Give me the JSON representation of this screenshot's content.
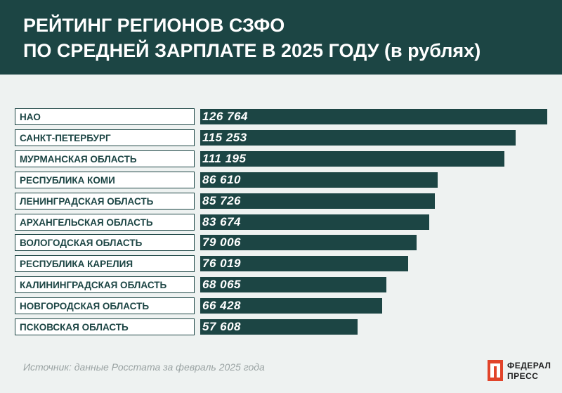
{
  "header": {
    "title_line1": "РЕЙТИНГ РЕГИОНОВ СЗФО",
    "title_line2": "ПО СРЕДНЕЙ ЗАРПЛАТЕ В 2025 ГОДУ (в рублях)"
  },
  "chart_data": {
    "type": "bar",
    "orientation": "horizontal",
    "title": "РЕЙТИНГ РЕГИОНОВ СЗФО ПО СРЕДНЕЙ ЗАРПЛАТЕ В 2025 ГОДУ (в рублях)",
    "categories": [
      "НАО",
      "САНКТ-ПЕТЕРБУРГ",
      "МУРМАНСКАЯ ОБЛАСТЬ",
      "РЕСПУБЛИКА КОМИ",
      "ЛЕНИНГРАДСКАЯ ОБЛАСТЬ",
      "АРХАНГЕЛЬСКАЯ ОБЛАСТЬ",
      "ВОЛОГОДСКАЯ ОБЛАСТЬ",
      "РЕСПУБЛИКА КАРЕЛИЯ",
      "КАЛИНИНГРАДСКАЯ ОБЛАСТЬ",
      "НОВГОРОДСКАЯ ОБЛАСТЬ",
      "ПСКОВСКАЯ ОБЛАСТЬ"
    ],
    "values": [
      126764,
      115253,
      111195,
      86610,
      85726,
      83674,
      79006,
      76019,
      68065,
      66428,
      57608
    ],
    "value_labels": [
      "126 764",
      "115 253",
      "111 195",
      "86 610",
      "85 726",
      "83 674",
      "79 006",
      "76 019",
      "68 065",
      "66 428",
      "57 608"
    ],
    "xlim": [
      0,
      126764
    ],
    "grid": false,
    "legend": "none"
  },
  "footer": {
    "source": "Источник: данные Росстата за февраль 2025 года",
    "logo_line1": "ФЕДЕРАЛ",
    "logo_line2": "ПРЕСС"
  },
  "colors": {
    "header_bg": "#1c4544",
    "bar": "#1c4544",
    "page_bg": "#eef2f1",
    "label_box_bg": "#ffffff",
    "label_text": "#1c4544",
    "source_text": "#9aa3a3",
    "logo_accent": "#e1442a"
  }
}
